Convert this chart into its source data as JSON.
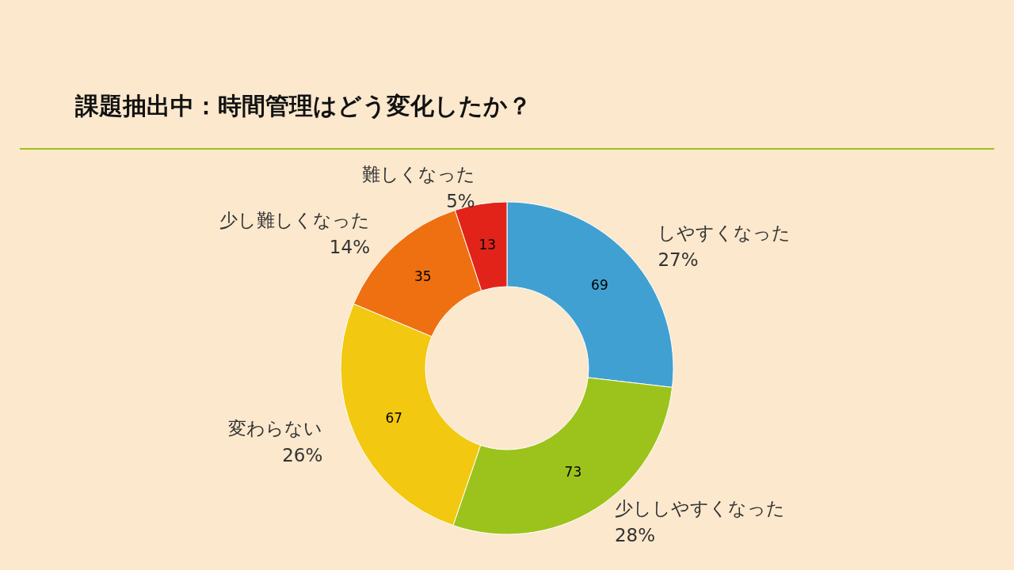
{
  "chart_data": {
    "type": "donut",
    "title": "課題抽出中：時間管理はどう変化したか？",
    "categories": [
      "しやすくなった 27%",
      "少ししやすくなった 28%",
      "変わらない 26%",
      "少し難しくなった 14%",
      "難しくなった 5%"
    ],
    "values": [
      69,
      73,
      67,
      35,
      13
    ],
    "colors": [
      "#41a0d2",
      "#9cc31b",
      "#f2c811",
      "#ee7011",
      "#e2231a"
    ],
    "data_labels": true
  }
}
